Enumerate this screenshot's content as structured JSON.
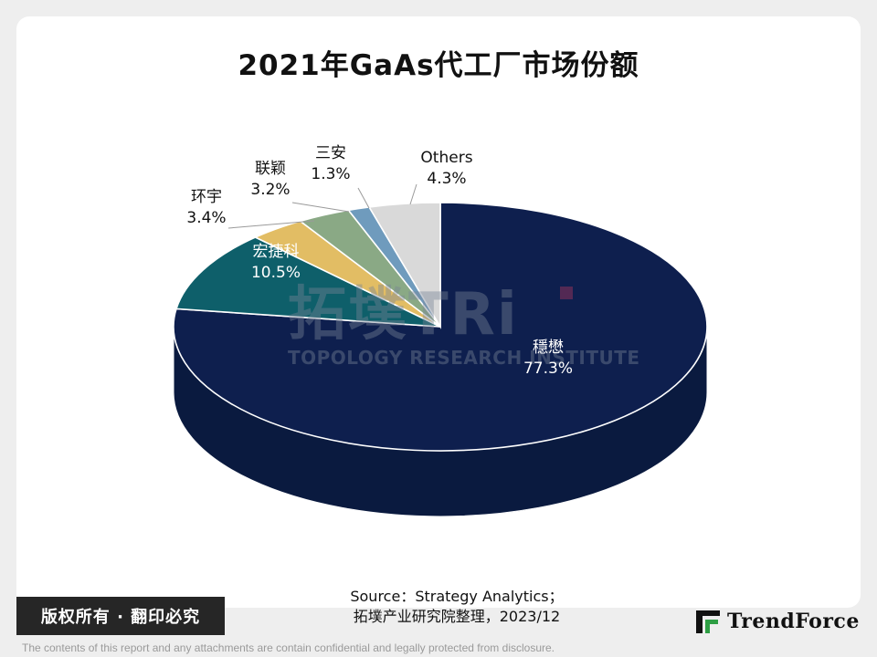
{
  "chart_data": {
    "type": "pie",
    "title": "2021年GaAs代工厂市场份额",
    "slices": [
      {
        "name": "穩懋",
        "value": 77.3,
        "value_label": "77.3%",
        "color": "#0e1f4e",
        "side_color": "#0a1a3f"
      },
      {
        "name": "宏捷科",
        "value": 10.5,
        "value_label": "10.5%",
        "color": "#0e5f6a",
        "side_color": "#09474f"
      },
      {
        "name": "环宇",
        "value": 3.4,
        "value_label": "3.4%",
        "color": "#e2bd64",
        "side_color": "#b8953f"
      },
      {
        "name": "联颖",
        "value": 3.2,
        "value_label": "3.2%",
        "color": "#8aa985",
        "side_color": "#6c8a67"
      },
      {
        "name": "三安",
        "value": 1.3,
        "value_label": "1.3%",
        "color": "#6f9bbd",
        "side_color": "#547d9c"
      },
      {
        "name": "Others",
        "value": 4.3,
        "value_label": "4.3%",
        "color": "#d9d9d9",
        "side_color": "#b3b3b3"
      }
    ],
    "start_angle_deg": 90,
    "direction": "clockwise",
    "style": "3d"
  },
  "watermark": {
    "logo_text": "拓墣TRi",
    "org": "TOPOLOGY RESEARCH INSTITUTE"
  },
  "footer": {
    "source_line1": "Source：Strategy Analytics；",
    "source_line2": "拓墣产业研究院整理，2023/12",
    "copyright": "版权所有 · 翻印必究",
    "brand_name": "TrendForce",
    "disclaimer": "The contents of this report and any attachments are contain confidential and legally protected from disclosure."
  }
}
